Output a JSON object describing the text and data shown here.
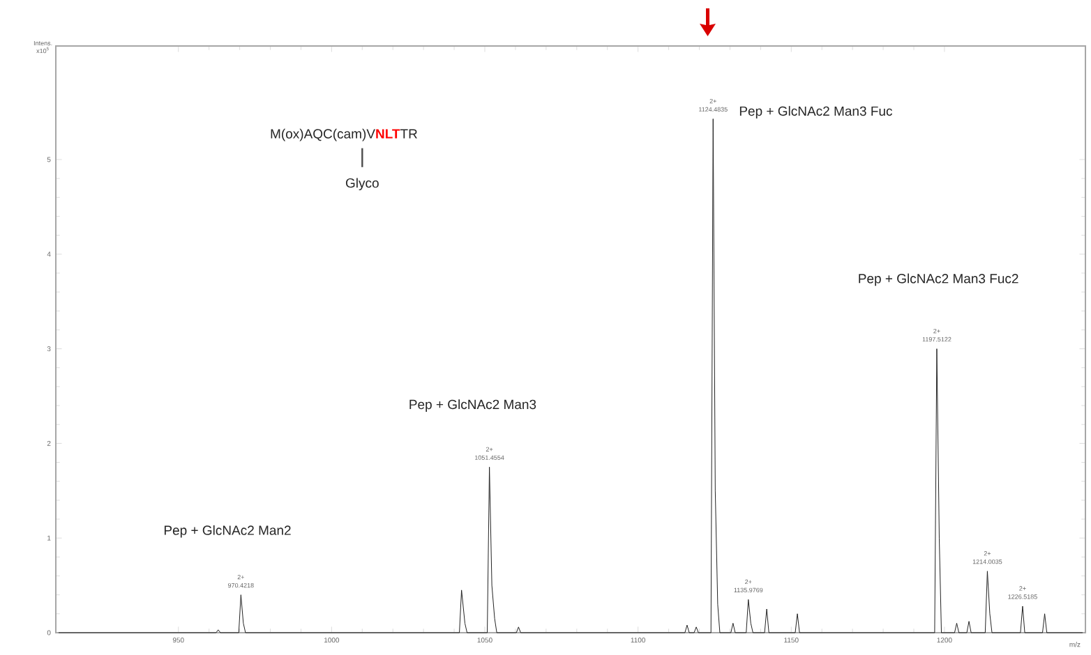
{
  "chart_data": {
    "type": "line",
    "xlabel": "m/z",
    "ylabel": "Intens. x10$^{5}$",
    "xlim": [
      910,
      1246
    ],
    "ylim": [
      0,
      6.2
    ],
    "xticks": [
      950,
      1000,
      1050,
      1100,
      1150,
      1200
    ],
    "yticks": [
      0,
      1,
      2,
      3,
      4,
      5
    ],
    "marker": "none",
    "line_style": "solid",
    "series": [
      {
        "color": "#222222",
        "x": [
          911,
          962.3,
          963,
          963.7,
          969.7,
          970.4,
          971.2,
          971.9,
          1041.7,
          1042.4,
          1043.5,
          1044.2,
          1050.8,
          1051.5,
          1052.3,
          1053.2,
          1053.9,
          1060.3,
          1061,
          1061.7,
          1115.3,
          1116,
          1116.7,
          1118.3,
          1119,
          1119.7,
          1123.8,
          1124.5,
          1125.2,
          1126,
          1126.7,
          1130.3,
          1131,
          1131.7,
          1135.3,
          1136,
          1136.8,
          1137.5,
          1141.3,
          1142,
          1142.7,
          1151.3,
          1152,
          1152.7,
          1196.8,
          1197.5,
          1198.3,
          1199,
          1203.3,
          1204,
          1204.7,
          1207.3,
          1208,
          1208.7,
          1213.3,
          1214,
          1214.8,
          1215.5,
          1224.8,
          1225.5,
          1226.2,
          1232,
          1232.7,
          1233.4,
          1245
        ],
        "values": [
          0,
          0,
          0.03,
          0,
          0,
          0.4,
          0.1,
          0,
          0,
          0.45,
          0.1,
          0,
          0,
          1.75,
          0.5,
          0.15,
          0,
          0,
          0.06,
          0,
          0,
          0.08,
          0,
          0,
          0.06,
          0,
          0,
          5.43,
          1.5,
          0.3,
          0,
          0,
          0.1,
          0,
          0,
          0.35,
          0.1,
          0,
          0,
          0.25,
          0,
          0,
          0.2,
          0,
          0,
          3.0,
          1.0,
          0,
          0,
          0.1,
          0,
          0,
          0.12,
          0,
          0,
          0.65,
          0.2,
          0,
          0,
          0.28,
          0,
          0,
          0.2,
          0,
          0
        ]
      }
    ],
    "annotations": [
      "M(ox)AQC(cam)V",
      "NLT",
      "TR",
      "Glyco",
      "Pep + GlcNAc2 Man2",
      "Pep + GlcNAc2 Man3",
      "Pep + GlcNAc2 Man3 Fuc",
      "Pep + GlcNAc2 Man3 Fuc2",
      {
        "text": "970.4218",
        "x": 970.4,
        "y": 0.4
      },
      {
        "text": "2+",
        "x": 970.4,
        "y": 0.4
      },
      {
        "text": "1051.4554",
        "x": 1051.5,
        "y": 1.75
      },
      {
        "text": "2+",
        "x": 1051.5,
        "y": 1.75
      },
      {
        "text": "1124.4835",
        "x": 1124.5,
        "y": 5.43
      },
      {
        "text": "2+",
        "x": 1124.5,
        "y": 5.43
      },
      {
        "text": "1135.9769",
        "x": 1136,
        "y": 0.35
      },
      {
        "text": "2+",
        "x": 1136,
        "y": 0.35
      },
      {
        "text": "1197.5122",
        "x": 1197.5,
        "y": 3.0
      },
      {
        "text": "2+",
        "x": 1197.5,
        "y": 3.0
      },
      {
        "text": "1214.0035",
        "x": 1214,
        "y": 0.65
      },
      {
        "text": "2+",
        "x": 1214,
        "y": 0.65
      },
      {
        "text": "1226.5185",
        "x": 1225.5,
        "y": 0.28
      },
      {
        "text": "2+",
        "x": 1225.5,
        "y": 0.28
      }
    ]
  }
}
